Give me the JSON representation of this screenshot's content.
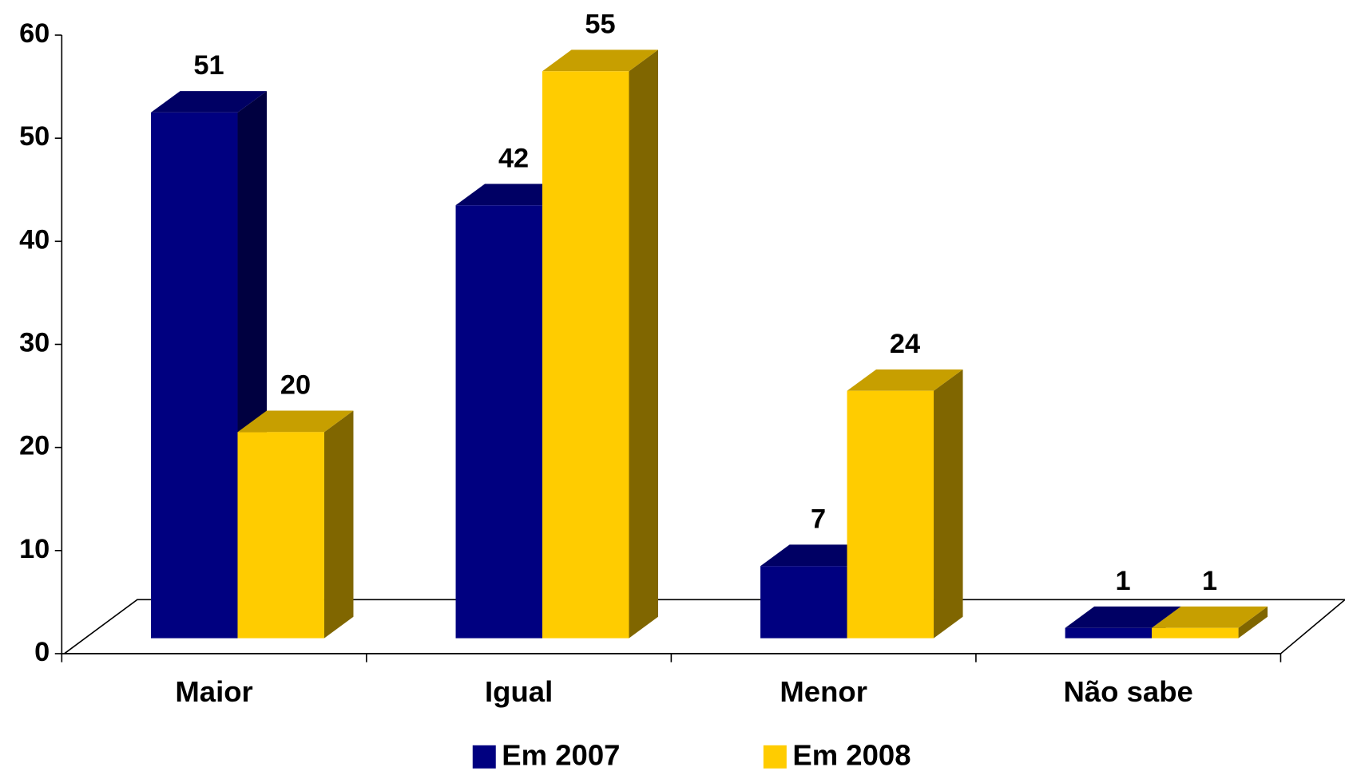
{
  "chart_data": {
    "type": "bar3d",
    "categories": [
      "Maior",
      "Igual",
      "Menor",
      "Não sabe"
    ],
    "series": [
      {
        "name": "Em 2007",
        "color": "#000080",
        "values": [
          51,
          42,
          7,
          1
        ]
      },
      {
        "name": "Em 2008",
        "color": "#FFCC00",
        "values": [
          20,
          55,
          24,
          1
        ]
      }
    ],
    "ylim": [
      0,
      60
    ],
    "yticks": [
      0,
      10,
      20,
      30,
      40,
      50,
      60
    ],
    "grid": false,
    "legend": "bottom"
  }
}
